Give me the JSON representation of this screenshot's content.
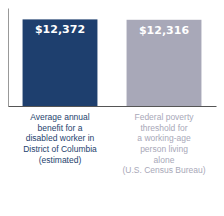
{
  "chart_data": {
    "type": "bar",
    "categories": [
      "Average annual\nbenefit for a\ndisabled worker in\nDistrict of Columbia\n(estimated)",
      "Federal poverty\nthreshold for\na working-age\nperson living\nalone\n(U.S. Census Bureau)"
    ],
    "values": [
      12372,
      12316
    ],
    "value_labels": [
      "$12,372",
      "$12,316"
    ],
    "colors": [
      "#1e3f6e",
      "#a8a8b8"
    ],
    "ylim": [
      0,
      14000
    ],
    "data_labels": true,
    "tick_labels": false,
    "grid": false
  }
}
